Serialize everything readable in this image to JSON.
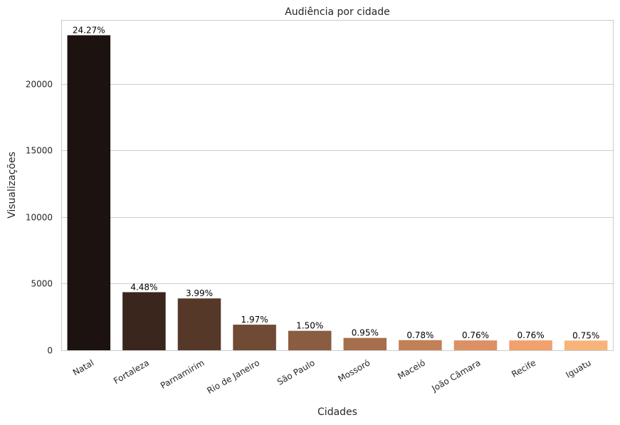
{
  "chart_data": {
    "type": "bar",
    "title": "Audiência por cidade",
    "xlabel": "Cidades",
    "ylabel": "Visualizações",
    "categories": [
      "Natal",
      "Fortaleza",
      "Parnamirim",
      "Rio de Janeiro",
      "São Paulo",
      "Mossoró",
      "Maceió",
      "João Câmara",
      "Recife",
      "Iguatu"
    ],
    "values": [
      23650,
      4360,
      3890,
      1920,
      1460,
      925,
      760,
      740,
      740,
      730
    ],
    "data_labels": [
      "24.27%",
      "4.48%",
      "3.99%",
      "1.97%",
      "1.50%",
      "0.95%",
      "0.78%",
      "0.76%",
      "0.76%",
      "0.75%"
    ],
    "colors": [
      "#1c1310",
      "#3a261c",
      "#553827",
      "#6f4a34",
      "#8a5c40",
      "#a66e4c",
      "#c28058",
      "#db9164",
      "#f0a16e",
      "#f7b47a"
    ],
    "yticks": [
      0,
      5000,
      10000,
      15000,
      20000
    ],
    "ylim": [
      0,
      24800
    ],
    "grid": "horizontal",
    "xtick_rotation": 30
  }
}
